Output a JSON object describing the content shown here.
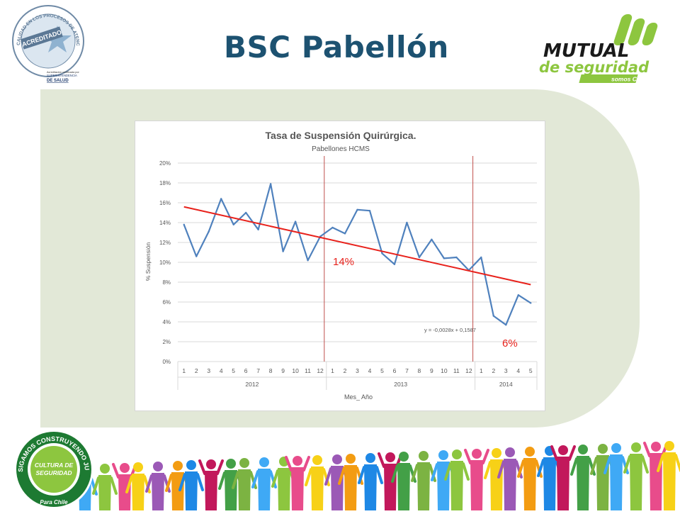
{
  "slide": {
    "title": "BSC Pabellón"
  },
  "logos": {
    "accredited_seal": {
      "ring_text": "CALIDAD EN LOS PROCESOS DE ATENCIÓN EN SALUD",
      "center_text": "ACREDITADO",
      "caption_line1": "Acreditación certificada por",
      "caption_line2": "SUPERINTENDENCIA",
      "caption_line3": "DE SALUD"
    },
    "mutual": {
      "name": "MUTUAL",
      "subtitle": "de seguridad",
      "tagline": "somos CChC"
    },
    "cultura": {
      "ring_text": "SIGAMOS CONSTRUYENDO JUNTOS",
      "center_line1": "CULTURA DE",
      "center_line2": "SEGURIDAD",
      "bottom_text": "Para Chile"
    }
  },
  "colors": {
    "title": "#1d5271",
    "panel": "#e2e8d7",
    "series": "#4f81bd",
    "trend": "#e8211b",
    "markers": "#c0504d",
    "annotation": "#e8211b",
    "mutual_green": "#8dc63f"
  },
  "chart_data": {
    "type": "line",
    "title": "Tasa de Suspensión Quirúrgica.",
    "subtitle": "Pabellones HCMS",
    "ylabel": "% Suspensión",
    "xlabel": "Mes_ Año",
    "ylim": [
      0,
      0.2
    ],
    "y_ticks": [
      "0%",
      "2%",
      "4%",
      "6%",
      "8%",
      "10%",
      "12%",
      "14%",
      "16%",
      "18%",
      "20%"
    ],
    "x_tick_labels": [
      "1",
      "2",
      "3",
      "4",
      "5",
      "6",
      "7",
      "8",
      "9",
      "10",
      "11",
      "12",
      "1",
      "2",
      "3",
      "4",
      "5",
      "6",
      "7",
      "8",
      "9",
      "10",
      "11",
      "12",
      "1",
      "2",
      "3",
      "4",
      "5"
    ],
    "year_groups": [
      {
        "label": "2012",
        "months": 12
      },
      {
        "label": "2013",
        "months": 12
      },
      {
        "label": "2014",
        "months": 5
      }
    ],
    "values": [
      0.138,
      0.106,
      0.131,
      0.164,
      0.138,
      0.15,
      0.133,
      0.179,
      0.111,
      0.141,
      0.102,
      0.126,
      0.135,
      0.129,
      0.153,
      0.152,
      0.109,
      0.098,
      0.14,
      0.105,
      0.123,
      0.104,
      0.105,
      0.092,
      0.105,
      0.046,
      0.037,
      0.067,
      0.059
    ],
    "trendline": {
      "slope": -0.0028,
      "intercept": 0.1587,
      "equation": "y = -0,0028x + 0,1587"
    },
    "period_markers_after_index": [
      11,
      23
    ],
    "annotations": [
      {
        "text": "14%",
        "near_period": "2013"
      },
      {
        "text": "6%",
        "near_period": "2014"
      }
    ],
    "grid": true,
    "legend": "none"
  }
}
